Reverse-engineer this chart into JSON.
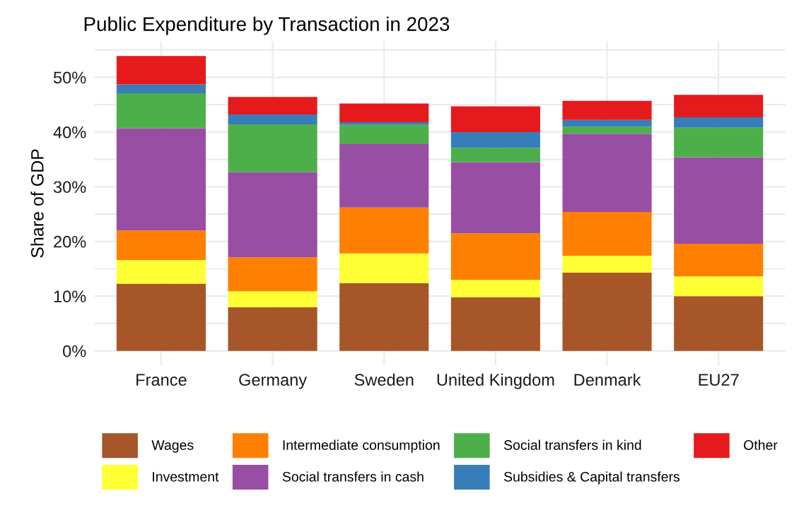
{
  "chart_data": {
    "type": "bar",
    "title": "Public Expenditure by Transaction in 2023",
    "ylabel": "Share of GDP",
    "stacked": true,
    "categories": [
      "France",
      "Germany",
      "Sweden",
      "United Kingdom",
      "Denmark",
      "EU27"
    ],
    "series": [
      {
        "name": "Wages",
        "color": "#a65628",
        "values": [
          12.3,
          8.0,
          12.4,
          9.8,
          14.3,
          10.0
        ]
      },
      {
        "name": "Investment",
        "color": "#ffff33",
        "values": [
          4.3,
          2.9,
          5.4,
          3.2,
          3.1,
          3.6
        ]
      },
      {
        "name": "Intermediate consumption",
        "color": "#ff7f00",
        "values": [
          5.4,
          6.2,
          8.4,
          8.5,
          8.0,
          6.0
        ]
      },
      {
        "name": "Social transfers in cash",
        "color": "#984ea3",
        "values": [
          18.7,
          15.6,
          11.6,
          13.0,
          14.3,
          15.8
        ]
      },
      {
        "name": "Social transfers in kind",
        "color": "#4daf4a",
        "values": [
          6.4,
          8.7,
          3.5,
          2.6,
          1.3,
          5.4
        ]
      },
      {
        "name": "Subsidies & Capital transfers",
        "color": "#377eb8",
        "values": [
          1.6,
          1.8,
          0.5,
          2.9,
          1.2,
          1.9
        ]
      },
      {
        "name": "Other",
        "color": "#e41a1c",
        "values": [
          5.2,
          3.2,
          3.4,
          4.7,
          3.5,
          4.1
        ]
      }
    ],
    "ylim": [
      -2.7,
      56.6
    ],
    "yticks": [
      {
        "value": 0,
        "label": "0%"
      },
      {
        "value": 5,
        "label": null
      },
      {
        "value": 10,
        "label": "10%"
      },
      {
        "value": 15,
        "label": null
      },
      {
        "value": 20,
        "label": "20%"
      },
      {
        "value": 25,
        "label": null
      },
      {
        "value": 30,
        "label": "30%"
      },
      {
        "value": 35,
        "label": null
      },
      {
        "value": 40,
        "label": "40%"
      },
      {
        "value": 45,
        "label": null
      },
      {
        "value": 50,
        "label": "50%"
      },
      {
        "value": 55,
        "label": null
      }
    ],
    "grid": true,
    "legend": "bottom"
  }
}
